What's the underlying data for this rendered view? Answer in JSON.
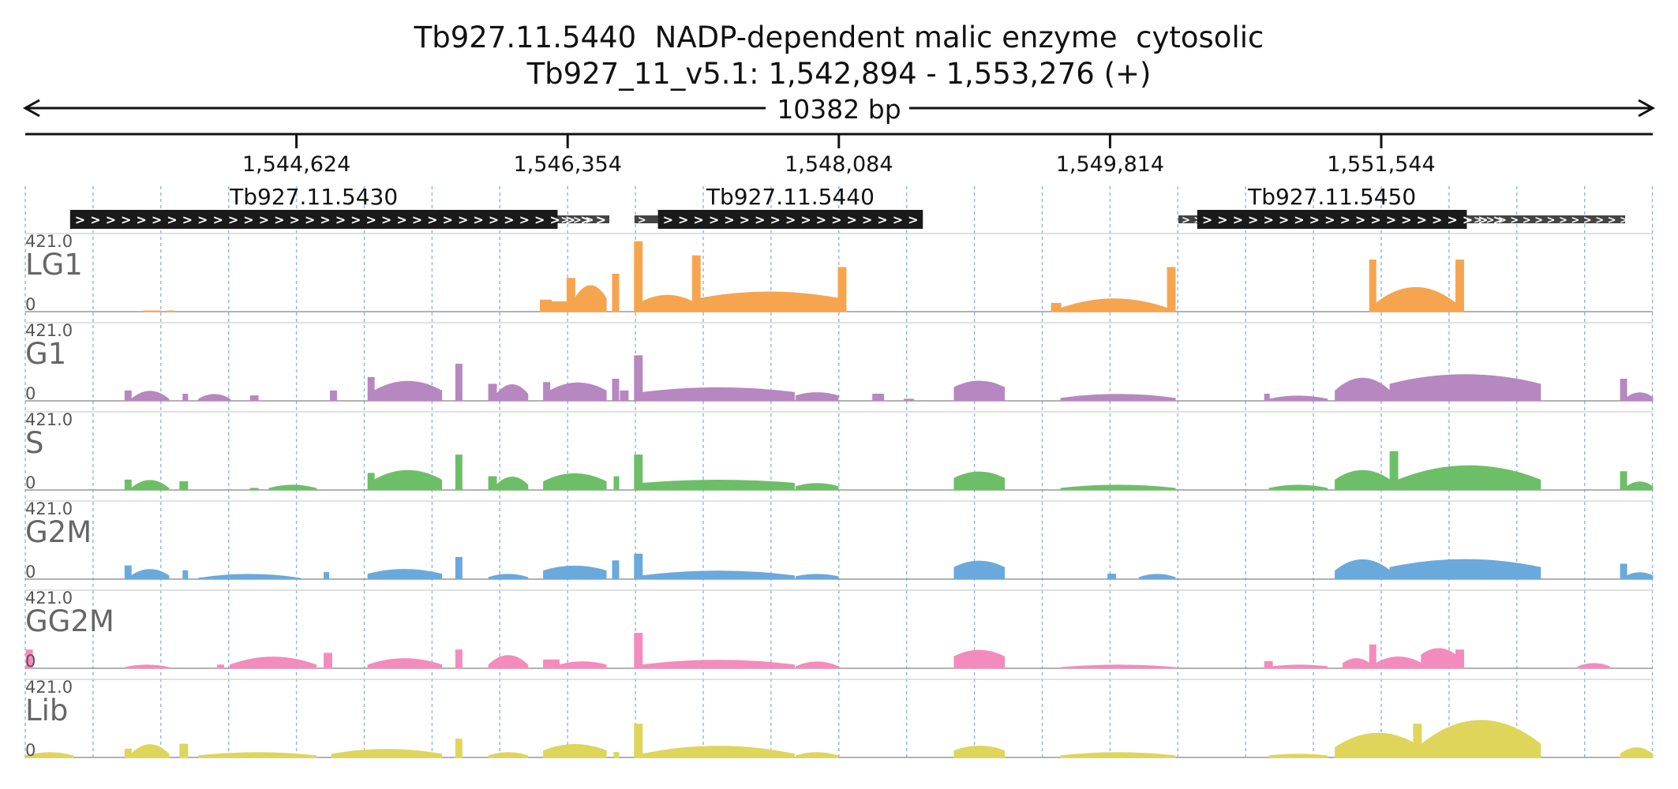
{
  "chart_data": {
    "type": "area",
    "title": "Tb927.11.5440  NADP-dependent malic enzyme  cytosolic",
    "subtitle": "Tb927_11_v5.1: 1,542,894 - 1,553,276 (+)",
    "span_label": "10382 bp",
    "xlim": [
      1542894,
      1553276
    ],
    "x_ticks": [
      {
        "value": 1544624,
        "label": "1,544,624"
      },
      {
        "value": 1546354,
        "label": "1,546,354"
      },
      {
        "value": 1548084,
        "label": "1,548,084"
      },
      {
        "value": 1549814,
        "label": "1,549,814"
      },
      {
        "value": 1551544,
        "label": "1,551,544"
      }
    ],
    "grid": true,
    "genes": [
      {
        "name": "Tb927.11.5430",
        "cds": [
          1543180,
          1546290
        ],
        "utr": [
          1546290,
          1546620
        ],
        "strand": "+"
      },
      {
        "name": "Tb927.11.5440",
        "cds": [
          1546930,
          1548620
        ],
        "utr": [
          1546780,
          1546930
        ],
        "strand": "+"
      },
      {
        "name": "Tb927.11.5450",
        "cds": [
          1550370,
          1552090
        ],
        "utr": [
          1550250,
          1553100
        ],
        "strand": "+"
      }
    ],
    "ylim": [
      0,
      421.0
    ],
    "ymax_label": "421.0",
    "ymin_label": "0",
    "colors": {
      "LG1": "#f6a54e",
      "G1": "#b787c1",
      "S": "#6cbf66",
      "G2M": "#6aa9dc",
      "GG2M": "#f48bbd",
      "Lib": "#dfd55a"
    },
    "series": [
      {
        "name": "LG1",
        "segments": [
          [
            1543650,
            1543760,
            5,
            5,
            "flat"
          ],
          [
            1543800,
            1543840,
            5,
            5,
            "flat"
          ],
          [
            1546180,
            1546350,
            30,
            60,
            "flat"
          ],
          [
            1546180,
            1546250,
            70,
            70,
            "flat"
          ],
          [
            1546350,
            1546400,
            200,
            200,
            "flat"
          ],
          [
            1546400,
            1546600,
            80,
            160,
            "hump"
          ],
          [
            1546640,
            1546680,
            225,
            225,
            "flat"
          ],
          [
            1546780,
            1546830,
            420,
            420,
            "flat"
          ],
          [
            1546830,
            1547150,
            60,
            100,
            "hump"
          ],
          [
            1547150,
            1547200,
            335,
            335,
            "flat"
          ],
          [
            1547200,
            1548080,
            80,
            120,
            "hump"
          ],
          [
            1548080,
            1548130,
            265,
            265,
            "flat"
          ],
          [
            1549440,
            1549500,
            50,
            50,
            "flat"
          ],
          [
            1549500,
            1550180,
            20,
            80,
            "hump"
          ],
          [
            1550180,
            1550230,
            265,
            265,
            "flat"
          ],
          [
            1551470,
            1551510,
            310,
            310,
            "flat"
          ],
          [
            1551510,
            1552020,
            50,
            150,
            "hump"
          ],
          [
            1552020,
            1552070,
            310,
            310,
            "flat"
          ]
        ]
      },
      {
        "name": "G1",
        "segments": [
          [
            1543530,
            1543570,
            60,
            60,
            "flat"
          ],
          [
            1543570,
            1543810,
            10,
            60,
            "hump"
          ],
          [
            1543900,
            1543930,
            40,
            40,
            "flat"
          ],
          [
            1544000,
            1544200,
            10,
            40,
            "hump"
          ],
          [
            1544330,
            1544380,
            30,
            30,
            "flat"
          ],
          [
            1544840,
            1544880,
            60,
            60,
            "flat"
          ],
          [
            1545080,
            1545120,
            140,
            140,
            "flat"
          ],
          [
            1545120,
            1545550,
            60,
            120,
            "hump"
          ],
          [
            1545640,
            1545680,
            220,
            220,
            "flat"
          ],
          [
            1545850,
            1545900,
            100,
            100,
            "flat"
          ],
          [
            1545900,
            1546100,
            40,
            100,
            "hump"
          ],
          [
            1546200,
            1546240,
            110,
            110,
            "flat"
          ],
          [
            1546240,
            1546600,
            60,
            110,
            "hump"
          ],
          [
            1546640,
            1546680,
            130,
            130,
            "flat"
          ],
          [
            1546690,
            1546740,
            60,
            60,
            "flat"
          ],
          [
            1546780,
            1546830,
            270,
            270,
            "flat"
          ],
          [
            1546830,
            1547800,
            50,
            80,
            "hump"
          ],
          [
            1547810,
            1548080,
            30,
            50,
            "hump"
          ],
          [
            1548300,
            1548370,
            40,
            40,
            "flat"
          ],
          [
            1548500,
            1548560,
            10,
            10,
            "flat"
          ],
          [
            1548820,
            1549140,
            80,
            120,
            "hump"
          ],
          [
            1549500,
            1550230,
            15,
            40,
            "hump"
          ],
          [
            1550800,
            1550830,
            40,
            40,
            "flat"
          ],
          [
            1550830,
            1551200,
            10,
            30,
            "hump"
          ],
          [
            1551250,
            1551600,
            60,
            140,
            "hump"
          ],
          [
            1551600,
            1552560,
            100,
            160,
            "hump"
          ],
          [
            1553070,
            1553110,
            130,
            130,
            "flat"
          ],
          [
            1553110,
            1553276,
            20,
            50,
            "hump"
          ]
        ]
      },
      {
        "name": "S",
        "segments": [
          [
            1543530,
            1543570,
            60,
            60,
            "flat"
          ],
          [
            1543570,
            1543810,
            10,
            60,
            "hump"
          ],
          [
            1543880,
            1543930,
            50,
            50,
            "flat"
          ],
          [
            1544330,
            1544380,
            10,
            10,
            "flat"
          ],
          [
            1544450,
            1544750,
            10,
            30,
            "hump"
          ],
          [
            1545080,
            1545120,
            100,
            100,
            "flat"
          ],
          [
            1545120,
            1545550,
            60,
            120,
            "hump"
          ],
          [
            1545640,
            1545680,
            210,
            210,
            "flat"
          ],
          [
            1545850,
            1545900,
            80,
            80,
            "flat"
          ],
          [
            1545900,
            1546100,
            30,
            80,
            "hump"
          ],
          [
            1546200,
            1546600,
            50,
            100,
            "hump"
          ],
          [
            1546650,
            1546680,
            80,
            80,
            "flat"
          ],
          [
            1546780,
            1546830,
            210,
            210,
            "flat"
          ],
          [
            1546830,
            1547800,
            40,
            60,
            "hump"
          ],
          [
            1547810,
            1548080,
            20,
            40,
            "hump"
          ],
          [
            1548820,
            1549140,
            70,
            110,
            "hump"
          ],
          [
            1549500,
            1550230,
            10,
            30,
            "hump"
          ],
          [
            1550830,
            1551200,
            10,
            30,
            "hump"
          ],
          [
            1551250,
            1551600,
            60,
            120,
            "hump"
          ],
          [
            1551600,
            1551650,
            230,
            230,
            "flat"
          ],
          [
            1551650,
            1552560,
            60,
            150,
            "hump"
          ],
          [
            1553070,
            1553110,
            110,
            110,
            "flat"
          ],
          [
            1553110,
            1553276,
            20,
            50,
            "hump"
          ]
        ]
      },
      {
        "name": "G2M",
        "segments": [
          [
            1543530,
            1543570,
            80,
            80,
            "flat"
          ],
          [
            1543570,
            1543810,
            20,
            60,
            "hump"
          ],
          [
            1543900,
            1543930,
            50,
            50,
            "flat"
          ],
          [
            1544000,
            1544650,
            5,
            30,
            "hump"
          ],
          [
            1544800,
            1544830,
            40,
            40,
            "flat"
          ],
          [
            1545080,
            1545550,
            30,
            60,
            "hump"
          ],
          [
            1545640,
            1545680,
            130,
            130,
            "flat"
          ],
          [
            1545850,
            1546100,
            10,
            30,
            "hump"
          ],
          [
            1546200,
            1546600,
            50,
            80,
            "hump"
          ],
          [
            1546640,
            1546680,
            110,
            110,
            "flat"
          ],
          [
            1546780,
            1546830,
            150,
            150,
            "flat"
          ],
          [
            1546830,
            1547800,
            20,
            50,
            "hump"
          ],
          [
            1547810,
            1548080,
            15,
            30,
            "hump"
          ],
          [
            1548820,
            1549140,
            70,
            110,
            "hump"
          ],
          [
            1549800,
            1549850,
            30,
            30,
            "flat"
          ],
          [
            1550000,
            1550230,
            10,
            30,
            "hump"
          ],
          [
            1551250,
            1551600,
            50,
            120,
            "hump"
          ],
          [
            1551600,
            1552560,
            70,
            120,
            "hump"
          ],
          [
            1553070,
            1553110,
            90,
            90,
            "flat"
          ],
          [
            1553110,
            1553276,
            20,
            40,
            "hump"
          ]
        ]
      },
      {
        "name": "GG2M",
        "segments": [
          [
            1542900,
            1542940,
            110,
            110,
            "flat"
          ],
          [
            1543530,
            1543810,
            5,
            20,
            "hump"
          ],
          [
            1544120,
            1544160,
            20,
            20,
            "flat"
          ],
          [
            1544200,
            1544750,
            20,
            70,
            "hump"
          ],
          [
            1544800,
            1544850,
            90,
            90,
            "flat"
          ],
          [
            1545080,
            1545550,
            20,
            60,
            "hump"
          ],
          [
            1545640,
            1545680,
            110,
            110,
            "flat"
          ],
          [
            1545850,
            1546100,
            20,
            80,
            "hump"
          ],
          [
            1546200,
            1546300,
            50,
            50,
            "flat"
          ],
          [
            1546300,
            1546600,
            20,
            40,
            "hump"
          ],
          [
            1546780,
            1546830,
            210,
            210,
            "flat"
          ],
          [
            1546830,
            1547800,
            20,
            50,
            "hump"
          ],
          [
            1547810,
            1548080,
            10,
            40,
            "hump"
          ],
          [
            1548820,
            1549140,
            70,
            110,
            "hump"
          ],
          [
            1549500,
            1550230,
            5,
            20,
            "hump"
          ],
          [
            1550800,
            1550850,
            40,
            40,
            "flat"
          ],
          [
            1550850,
            1551200,
            10,
            20,
            "hump"
          ],
          [
            1551300,
            1551470,
            30,
            60,
            "hump"
          ],
          [
            1551470,
            1551510,
            140,
            140,
            "flat"
          ],
          [
            1551510,
            1551800,
            30,
            70,
            "hump"
          ],
          [
            1551800,
            1552020,
            80,
            120,
            "hump"
          ],
          [
            1552020,
            1552070,
            110,
            110,
            "flat"
          ],
          [
            1552800,
            1553000,
            10,
            30,
            "hump"
          ]
        ]
      },
      {
        "name": "Lib",
        "segments": [
          [
            1542900,
            1543200,
            10,
            30,
            "hump"
          ],
          [
            1543530,
            1543570,
            50,
            50,
            "flat"
          ],
          [
            1543570,
            1543810,
            20,
            80,
            "hump"
          ],
          [
            1543880,
            1543930,
            80,
            80,
            "flat"
          ],
          [
            1544000,
            1544750,
            10,
            30,
            "hump"
          ],
          [
            1544850,
            1545550,
            20,
            50,
            "hump"
          ],
          [
            1545640,
            1545680,
            110,
            110,
            "flat"
          ],
          [
            1545850,
            1546100,
            10,
            30,
            "hump"
          ],
          [
            1546200,
            1546600,
            40,
            80,
            "hump"
          ],
          [
            1546650,
            1546680,
            30,
            30,
            "flat"
          ],
          [
            1546780,
            1546830,
            200,
            200,
            "flat"
          ],
          [
            1546830,
            1547800,
            20,
            70,
            "hump"
          ],
          [
            1547810,
            1548080,
            10,
            30,
            "hump"
          ],
          [
            1548820,
            1549140,
            40,
            70,
            "hump"
          ],
          [
            1549500,
            1550230,
            10,
            30,
            "hump"
          ],
          [
            1550830,
            1551200,
            10,
            20,
            "hump"
          ],
          [
            1551250,
            1551800,
            60,
            150,
            "hump"
          ],
          [
            1551750,
            1551800,
            200,
            200,
            "flat"
          ],
          [
            1551800,
            1552560,
            80,
            230,
            "hump"
          ],
          [
            1553070,
            1553276,
            20,
            60,
            "hump"
          ]
        ]
      }
    ]
  }
}
